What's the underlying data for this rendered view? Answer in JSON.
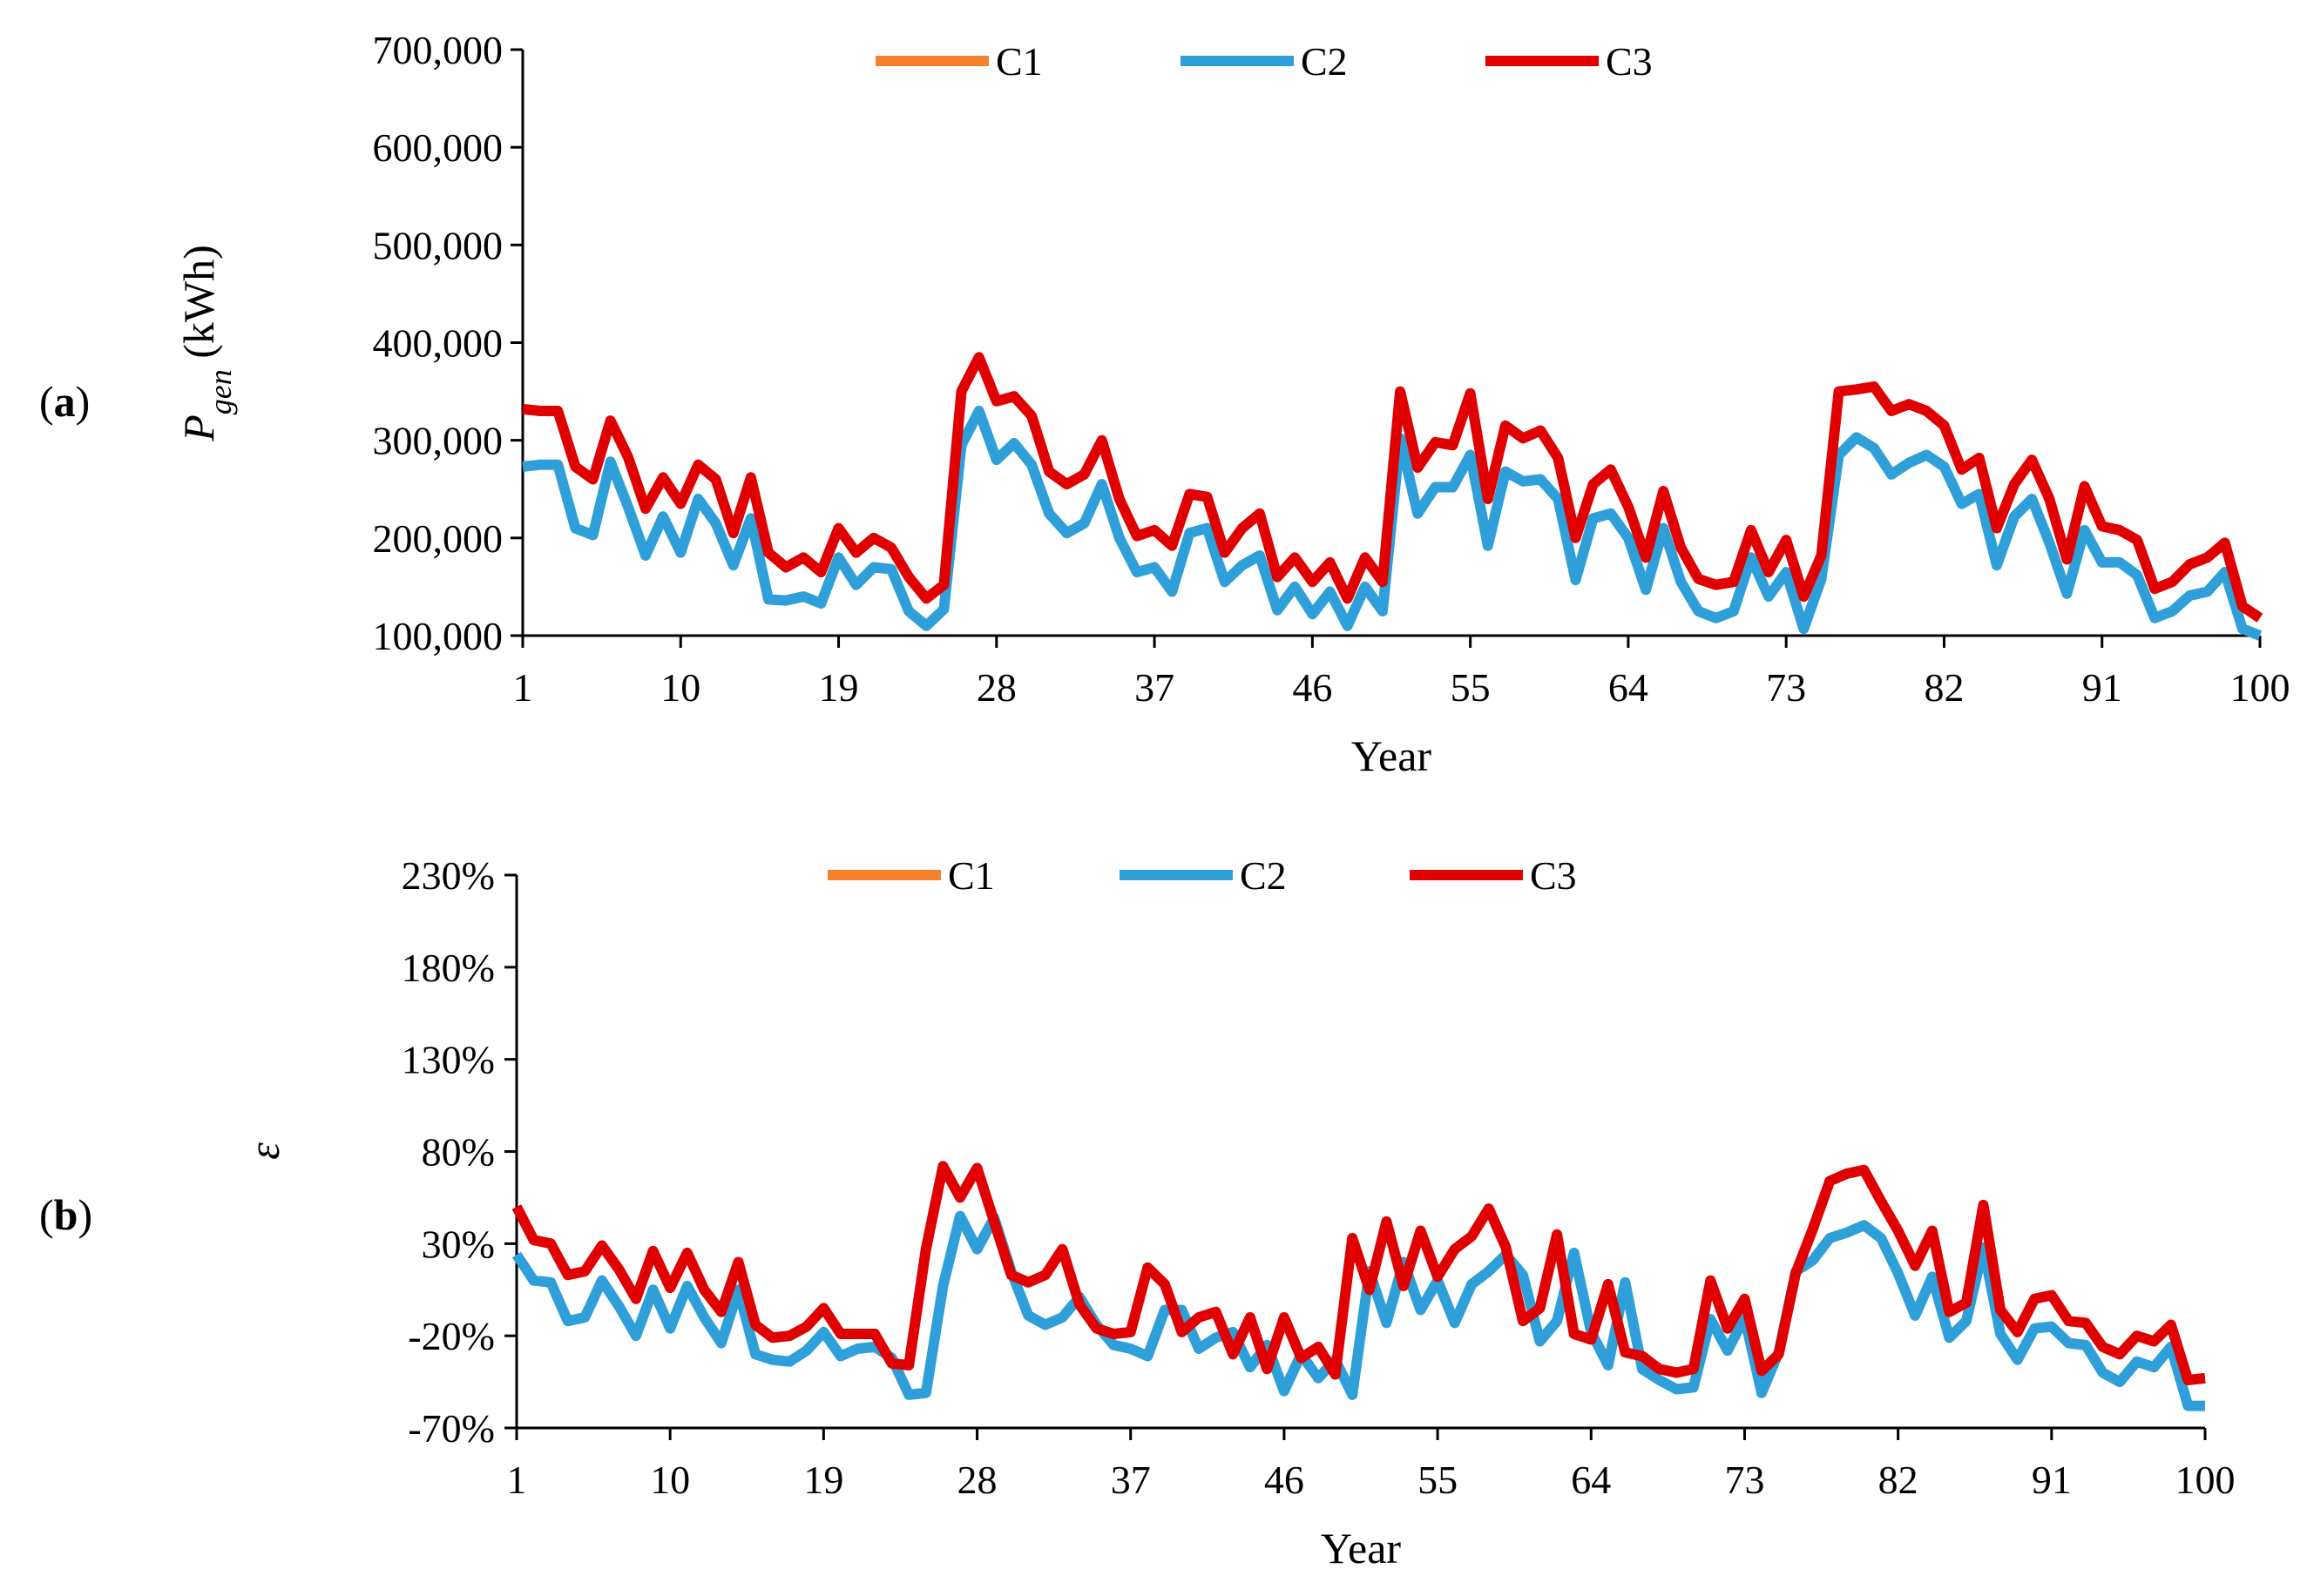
{
  "chart_data": [
    {
      "type": "line",
      "panel_label": "(a)",
      "xlabel": "Year",
      "ylabel_main": "P",
      "ylabel_sub": "gen",
      "ylabel_unit": " (kWh)",
      "x_range": [
        1,
        100
      ],
      "x_ticks": [
        1,
        10,
        19,
        28,
        37,
        46,
        55,
        64,
        73,
        82,
        91,
        100
      ],
      "ylim": [
        100000,
        700000
      ],
      "y_ticks": [
        100000,
        200000,
        300000,
        400000,
        500000,
        600000,
        700000
      ],
      "y_tick_labels": [
        "100,000",
        "200,000",
        "300,000",
        "400,000",
        "500,000",
        "600,000",
        "700,000"
      ],
      "legend_position": "top",
      "grid": false,
      "series": [
        {
          "name": "C1",
          "color": "#F5822A",
          "values": []
        },
        {
          "name": "C2",
          "color": "#2E9FD8",
          "values": [
            273000,
            275000,
            275000,
            210000,
            203000,
            278000,
            232000,
            182000,
            222000,
            185000,
            240000,
            215000,
            172000,
            220000,
            137000,
            136000,
            140000,
            133000,
            180000,
            152000,
            170000,
            168000,
            125000,
            110000,
            127000,
            295000,
            330000,
            280000,
            297000,
            275000,
            225000,
            205000,
            215000,
            255000,
            200000,
            165000,
            170000,
            145000,
            205000,
            210000,
            155000,
            172000,
            182000,
            126000,
            150000,
            122000,
            145000,
            110000,
            150000,
            125000,
            302000,
            225000,
            252000,
            252000,
            285000,
            192000,
            268000,
            258000,
            260000,
            240000,
            157000,
            220000,
            225000,
            200000,
            147000,
            210000,
            155000,
            125000,
            118000,
            125000,
            180000,
            140000,
            165000,
            107000,
            158000,
            285000,
            303000,
            292000,
            265000,
            277000,
            285000,
            273000,
            235000,
            245000,
            172000,
            222000,
            240000,
            195000,
            143000,
            208000,
            175000,
            175000,
            162000,
            118000,
            125000,
            141000,
            145000,
            165000,
            107000,
            100000
          ]
        },
        {
          "name": "C3",
          "color": "#E00000",
          "values": [
            332000,
            330000,
            330000,
            273000,
            260000,
            320000,
            283000,
            230000,
            262000,
            235000,
            275000,
            260000,
            205000,
            262000,
            185000,
            170000,
            180000,
            165000,
            210000,
            185000,
            200000,
            190000,
            160000,
            138000,
            152000,
            350000,
            385000,
            340000,
            345000,
            325000,
            268000,
            255000,
            265000,
            300000,
            240000,
            202000,
            208000,
            192000,
            245000,
            242000,
            185000,
            210000,
            225000,
            160000,
            180000,
            155000,
            175000,
            138000,
            180000,
            155000,
            350000,
            272000,
            298000,
            295000,
            348000,
            240000,
            315000,
            302000,
            310000,
            282000,
            200000,
            255000,
            270000,
            232000,
            180000,
            248000,
            190000,
            158000,
            152000,
            155000,
            208000,
            165000,
            198000,
            140000,
            182000,
            350000,
            352000,
            355000,
            330000,
            337000,
            330000,
            315000,
            270000,
            282000,
            210000,
            255000,
            280000,
            240000,
            178000,
            253000,
            212000,
            208000,
            198000,
            148000,
            155000,
            173000,
            180000,
            195000,
            130000,
            118000
          ]
        }
      ]
    },
    {
      "type": "line",
      "panel_label": "(b)",
      "xlabel": "Year",
      "ylabel_main": "ε",
      "x_range": [
        1,
        100
      ],
      "x_ticks": [
        1,
        10,
        19,
        28,
        37,
        46,
        55,
        64,
        73,
        82,
        91,
        100
      ],
      "ylim": [
        -70,
        230
      ],
      "y_ticks": [
        -70,
        -20,
        30,
        80,
        130,
        180,
        230
      ],
      "y_tick_labels": [
        "-70%",
        "-20%",
        "30%",
        "80%",
        "130%",
        "180%",
        "230%"
      ],
      "legend_position": "top",
      "grid": false,
      "series": [
        {
          "name": "C1",
          "color": "#F5822A",
          "values": []
        },
        {
          "name": "C2",
          "color": "#2E9FD8",
          "values": [
            24,
            10,
            9,
            -12,
            -10,
            10,
            -4,
            -20,
            5,
            -16,
            7,
            -10,
            -24,
            5,
            -30,
            -33,
            -34,
            -28,
            -18,
            -31,
            -27,
            -26,
            -32,
            -52,
            -51,
            7,
            45,
            27,
            44,
            15,
            -9,
            -14,
            -10,
            1,
            -14,
            -25,
            -27,
            -31,
            -6,
            -6,
            -27,
            -21,
            -18,
            -37,
            -25,
            -50,
            -30,
            -43,
            -33,
            -52,
            15,
            -13,
            20,
            -6,
            10,
            -13,
            8,
            15,
            24,
            13,
            -23,
            -12,
            25,
            -18,
            -36,
            9,
            -38,
            -44,
            -49,
            -48,
            -11,
            -28,
            -10,
            -51,
            -29,
            15,
            21,
            33,
            36,
            40,
            33,
            14,
            -9,
            12,
            -21,
            -12,
            28,
            -19,
            -33,
            -16,
            -15,
            -24,
            -25,
            -40,
            -45,
            -34,
            -37,
            -26,
            -58,
            -58
          ]
        },
        {
          "name": "C3",
          "color": "#E00000",
          "values": [
            50,
            32,
            30,
            13,
            15,
            29,
            16,
            0,
            26,
            6,
            25,
            5,
            -7,
            20,
            -14,
            -21,
            -20,
            -15,
            -5,
            -19,
            -19,
            -19,
            -35,
            -36,
            27,
            72,
            55,
            71,
            42,
            13,
            9,
            13,
            27,
            -3,
            -16,
            -19,
            -18,
            17,
            8,
            -18,
            -10,
            -7,
            -30,
            -10,
            -38,
            -10,
            -32,
            -26,
            -41,
            33,
            5,
            42,
            7,
            37,
            12,
            27,
            34,
            49,
            28,
            -12,
            -5,
            35,
            -19,
            -22,
            8,
            -29,
            -31,
            -38,
            -40,
            -38,
            10,
            -16,
            0,
            -39,
            -30,
            14,
            38,
            64,
            68,
            70,
            53,
            37,
            18,
            37,
            -7,
            -2,
            51,
            -6,
            -18,
            0,
            2,
            -12,
            -13,
            -26,
            -30,
            -20,
            -23,
            -14,
            -44,
            -43
          ]
        }
      ]
    }
  ]
}
